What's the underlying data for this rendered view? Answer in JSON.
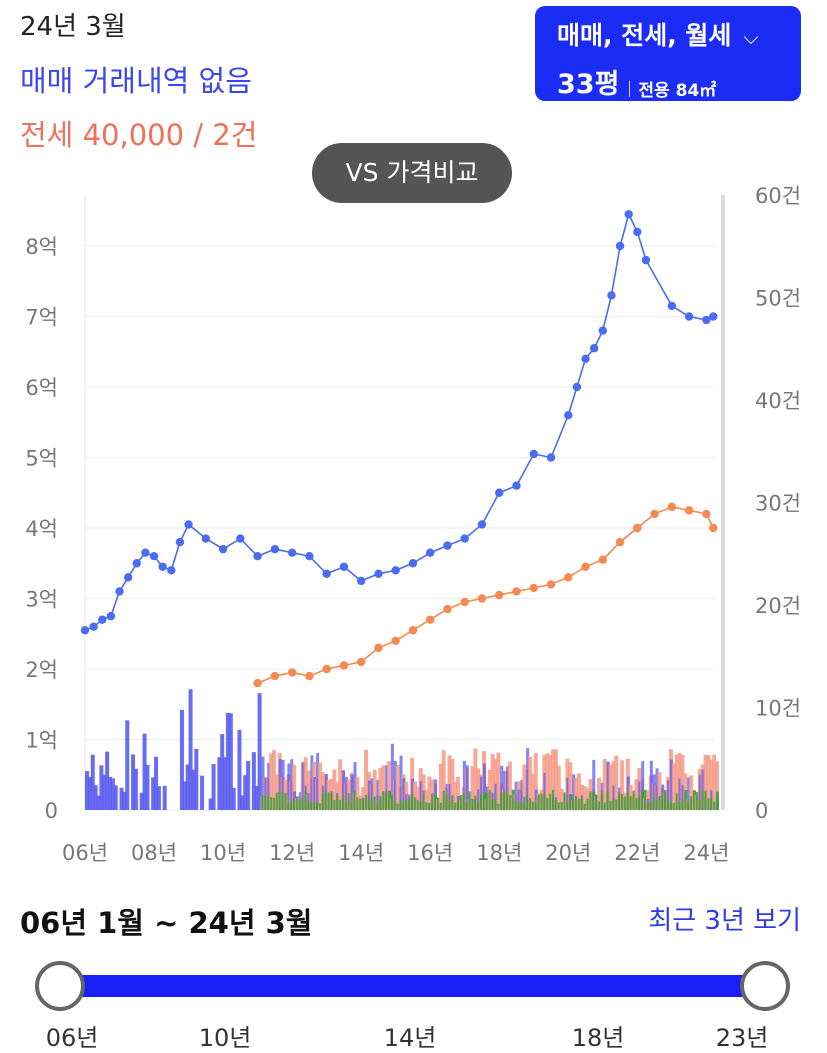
{
  "header": {
    "date": "24년 3월",
    "sale_status": "매매 거래내역 없음",
    "jeonse_status": "전세 40,000 / 2건"
  },
  "filter": {
    "deal_types": "매매, 전세, 월세",
    "pyeong": "33평",
    "exclusive_area": "전용 84㎡"
  },
  "compare_button": "VS 가격비교",
  "range": {
    "label": "06년 1월 ~ 24년 3월",
    "recent_link": "최근 3년 보기",
    "ticks": [
      "06년",
      "10년",
      "14년",
      "18년",
      "23년"
    ]
  },
  "colors": {
    "sale": "#4a6cf0",
    "jeonse": "#f5894f",
    "sale_bar": "#5a5cf0",
    "jeonse_bar": "#f59a86",
    "monthly_bar": "#3aa33a",
    "accent": "#1a2cf5"
  },
  "chart_data": {
    "type": "line",
    "x_tick_labels": [
      "06년",
      "08년",
      "10년",
      "12년",
      "14년",
      "16년",
      "18년",
      "20년",
      "22년",
      "24년"
    ],
    "y_left_tick_labels": [
      "0",
      "1억",
      "2억",
      "3억",
      "4억",
      "5억",
      "6억",
      "7억",
      "8억"
    ],
    "y_right_tick_labels": [
      "0",
      "10건",
      "20건",
      "30건",
      "40건",
      "50건",
      "60건"
    ],
    "xlim": [
      2006.0,
      2024.25
    ],
    "ylim_left": [
      0,
      8.6
    ],
    "ylim_right": [
      0,
      60
    ],
    "series": [
      {
        "key": "sale",
        "axis": "left",
        "points": [
          [
            2006.0,
            2.55
          ],
          [
            2006.25,
            2.6
          ],
          [
            2006.5,
            2.7
          ],
          [
            2006.75,
            2.75
          ],
          [
            2007.0,
            3.1
          ],
          [
            2007.25,
            3.3
          ],
          [
            2007.5,
            3.5
          ],
          [
            2007.75,
            3.65
          ],
          [
            2008.0,
            3.6
          ],
          [
            2008.25,
            3.45
          ],
          [
            2008.5,
            3.4
          ],
          [
            2008.75,
            3.8
          ],
          [
            2009.0,
            4.05
          ],
          [
            2009.5,
            3.85
          ],
          [
            2010.0,
            3.7
          ],
          [
            2010.5,
            3.85
          ],
          [
            2011.0,
            3.6
          ],
          [
            2011.5,
            3.7
          ],
          [
            2012.0,
            3.65
          ],
          [
            2012.5,
            3.6
          ],
          [
            2013.0,
            3.35
          ],
          [
            2013.5,
            3.45
          ],
          [
            2014.0,
            3.25
          ],
          [
            2014.5,
            3.35
          ],
          [
            2015.0,
            3.4
          ],
          [
            2015.5,
            3.5
          ],
          [
            2016.0,
            3.65
          ],
          [
            2016.5,
            3.75
          ],
          [
            2017.0,
            3.85
          ],
          [
            2017.5,
            4.05
          ],
          [
            2018.0,
            4.5
          ],
          [
            2018.5,
            4.6
          ],
          [
            2019.0,
            5.05
          ],
          [
            2019.5,
            5.0
          ],
          [
            2020.0,
            5.6
          ],
          [
            2020.25,
            6.0
          ],
          [
            2020.5,
            6.4
          ],
          [
            2020.75,
            6.55
          ],
          [
            2021.0,
            6.8
          ],
          [
            2021.25,
            7.3
          ],
          [
            2021.5,
            8.0
          ],
          [
            2021.75,
            8.45
          ],
          [
            2022.0,
            8.2
          ],
          [
            2022.25,
            7.8
          ],
          [
            2023.0,
            7.15
          ],
          [
            2023.5,
            7.0
          ],
          [
            2024.0,
            6.95
          ],
          [
            2024.2,
            7.0
          ]
        ]
      },
      {
        "key": "jeonse",
        "axis": "left",
        "points": [
          [
            2011.0,
            1.8
          ],
          [
            2011.5,
            1.9
          ],
          [
            2012.0,
            1.95
          ],
          [
            2012.5,
            1.9
          ],
          [
            2013.0,
            2.0
          ],
          [
            2013.5,
            2.05
          ],
          [
            2014.0,
            2.1
          ],
          [
            2014.5,
            2.3
          ],
          [
            2015.0,
            2.4
          ],
          [
            2015.5,
            2.55
          ],
          [
            2016.0,
            2.7
          ],
          [
            2016.5,
            2.85
          ],
          [
            2017.0,
            2.95
          ],
          [
            2017.5,
            3.0
          ],
          [
            2018.0,
            3.05
          ],
          [
            2018.5,
            3.1
          ],
          [
            2019.0,
            3.15
          ],
          [
            2019.5,
            3.2
          ],
          [
            2020.0,
            3.3
          ],
          [
            2020.5,
            3.45
          ],
          [
            2021.0,
            3.55
          ],
          [
            2021.5,
            3.8
          ],
          [
            2022.0,
            4.0
          ],
          [
            2022.5,
            4.2
          ],
          [
            2023.0,
            4.3
          ],
          [
            2023.5,
            4.25
          ],
          [
            2024.0,
            4.2
          ],
          [
            2024.2,
            4.0
          ]
        ]
      }
    ]
  }
}
